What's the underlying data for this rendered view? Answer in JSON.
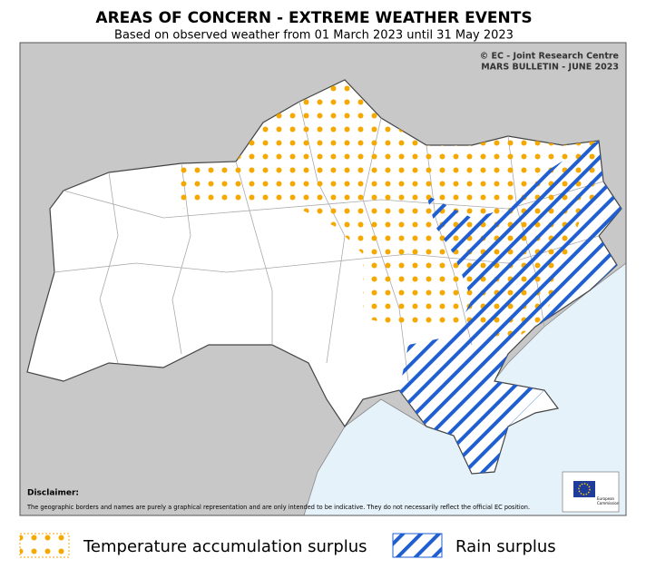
{
  "header": {
    "title": "AREAS OF CONCERN - EXTREME WEATHER EVENTS",
    "subtitle": "Based on observed weather from 01 March 2023 until 31 May 2023"
  },
  "credit": [
    "© EC - Joint Research Centre",
    "MARS BULLETIN - JUNE 2023"
  ],
  "disclaimer": {
    "title": "Disclaimer:",
    "text": "The geographic borders and names are purely a graphical representation and are only intended to be indicative. They do not necessarily reflect the official EC position."
  },
  "logo": [
    "European",
    "Commission"
  ],
  "legend": [
    {
      "label": "Temperature accumulation surplus"
    },
    {
      "label": "Rain surplus"
    }
  ]
}
